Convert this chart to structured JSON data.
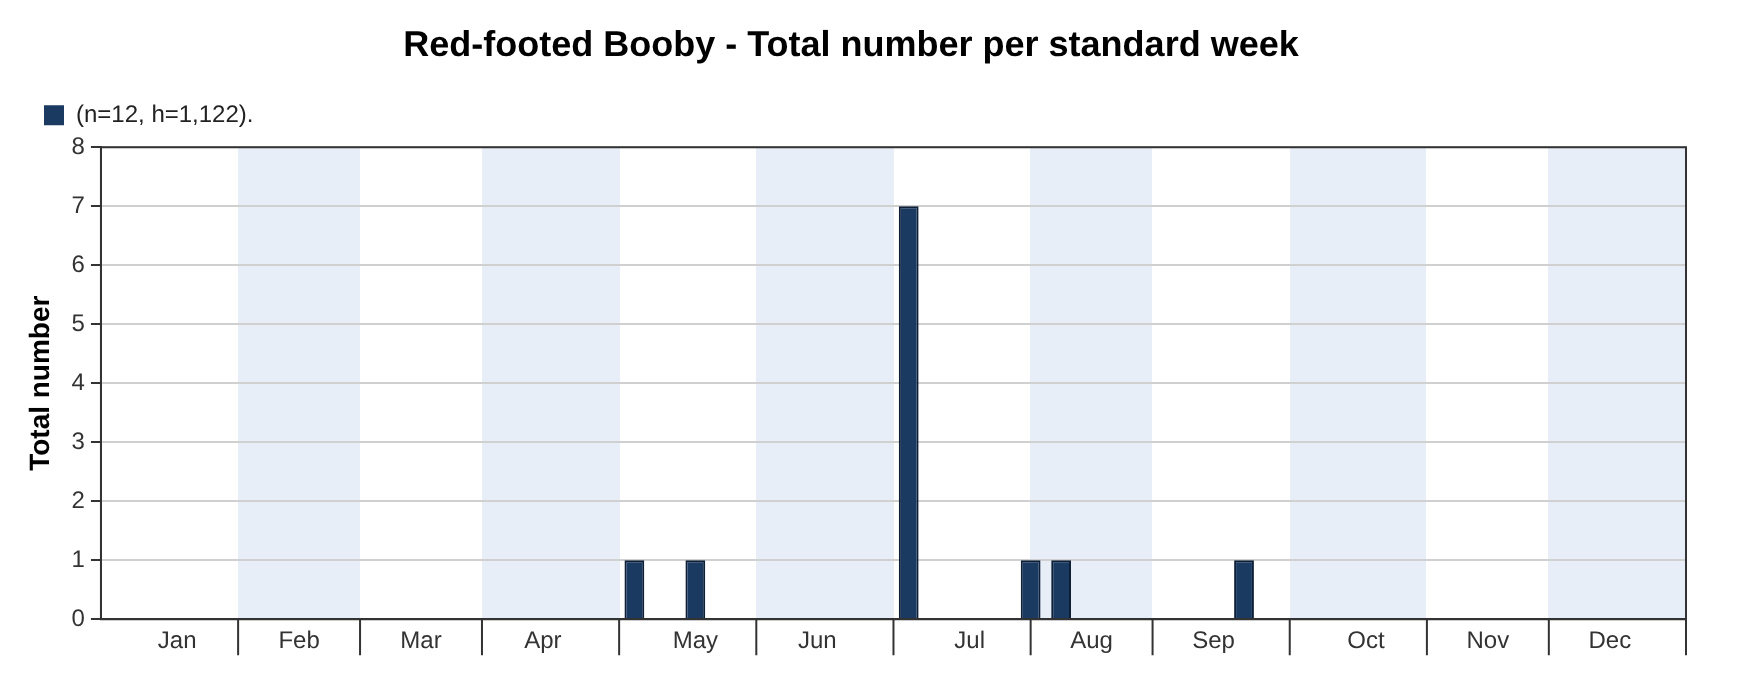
{
  "chart_data": {
    "type": "bar",
    "title": "Red-footed Booby - Total number per standard week",
    "ylabel": "Total number",
    "categories": [
      null,
      null,
      "Jan",
      null,
      null,
      null,
      "Feb",
      null,
      null,
      null,
      "Mar",
      null,
      null,
      null,
      "Apr",
      null,
      null,
      null,
      null,
      "May",
      null,
      null,
      null,
      "Jun",
      null,
      null,
      null,
      null,
      "Jul",
      null,
      null,
      null,
      "Aug",
      null,
      null,
      null,
      "Sep",
      null,
      null,
      null,
      null,
      "Oct",
      null,
      null,
      null,
      "Nov",
      null,
      null,
      null,
      "Dec",
      null,
      null
    ],
    "series": [
      {
        "name": "(n=12, h=1,122).",
        "color": "#1b3a61",
        "values": [
          0,
          0,
          0,
          0,
          0,
          0,
          0,
          0,
          0,
          0,
          0,
          0,
          0,
          0,
          0,
          0,
          0,
          1,
          0,
          1,
          0,
          0,
          0,
          0,
          0,
          0,
          7,
          0,
          0,
          0,
          1,
          1,
          0,
          0,
          0,
          0,
          0,
          1,
          0,
          0,
          0,
          0,
          0,
          0,
          0,
          0,
          0,
          0,
          0,
          0,
          0,
          0
        ]
      }
    ],
    "ylim": [
      0,
      8
    ],
    "yticks": [
      0,
      1,
      2,
      3,
      4,
      5,
      6,
      7,
      8
    ],
    "grid": "y",
    "legend": "top left"
  }
}
